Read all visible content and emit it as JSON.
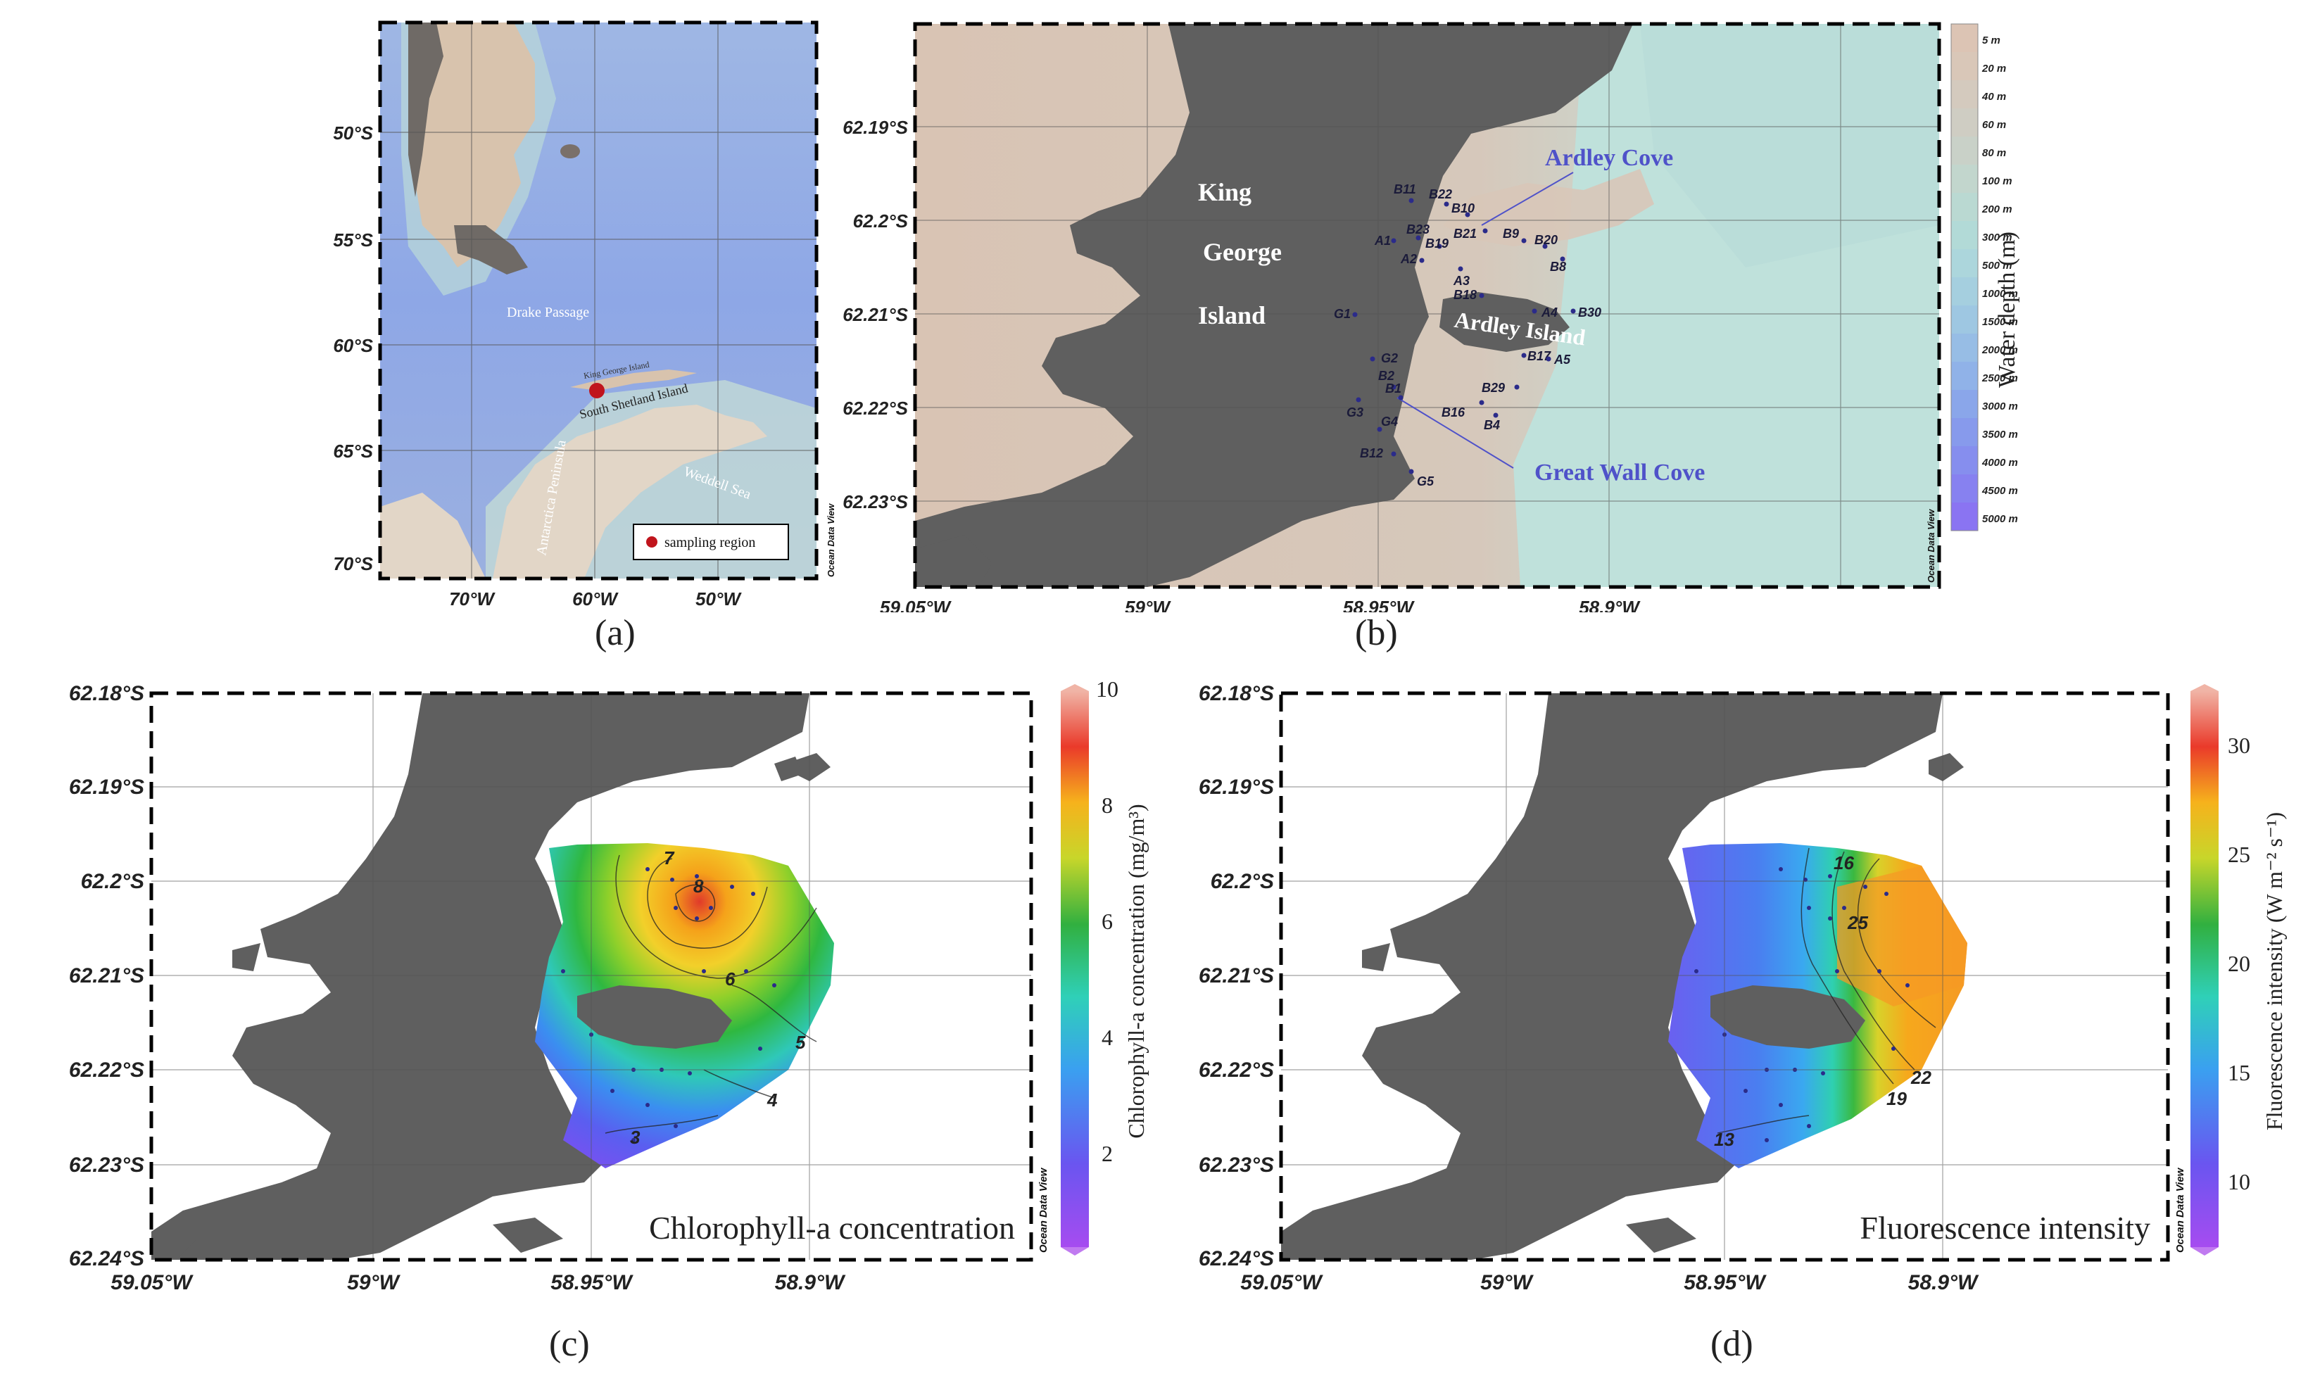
{
  "panels": {
    "a": {
      "caption": "(a)",
      "lat_labels": [
        "50°S",
        "55°S",
        "60°S",
        "65°S",
        "70°S"
      ],
      "lon_labels": [
        "70°W",
        "60°W",
        "50°W"
      ],
      "place_labels": [
        "Drake Passage",
        "King George Island",
        "South Shetland Island",
        "Weddell Sea",
        "Antarctica Peninsula"
      ],
      "legend_label": "sampling region",
      "watermark": "Ocean Data View"
    },
    "b": {
      "caption": "(b)",
      "lat_labels": [
        "62.19°S",
        "62.2°S",
        "62.21°S",
        "62.22°S",
        "62.23°S"
      ],
      "lon_labels": [
        "59.05°W",
        "59°W",
        "58.95°W",
        "58.9°W"
      ],
      "island_words": [
        "King",
        "George",
        "Island"
      ],
      "ardley_island": "Ardley Island",
      "ardley_cove": "Ardley Cove",
      "great_wall_cove": "Great Wall Cove",
      "stations": [
        "B11",
        "B22",
        "B10",
        "A1",
        "B23",
        "B19",
        "B21",
        "B9",
        "B20",
        "B8",
        "A2",
        "A3",
        "B18",
        "A4",
        "B30",
        "G1",
        "G2",
        "B17",
        "A5",
        "B2",
        "B1",
        "B29",
        "G3",
        "B16",
        "B4",
        "G4",
        "B12",
        "G5"
      ],
      "colorbar_title": "Water depth (m)",
      "depth_ticks": [
        "5 m",
        "20 m",
        "40 m",
        "60 m",
        "80 m",
        "100 m",
        "200 m",
        "300 m",
        "500 m",
        "1000 m",
        "1500 m",
        "2000 m",
        "2500 m",
        "3000 m",
        "3500 m",
        "4000 m",
        "4500 m",
        "5000 m"
      ],
      "depth_colors": [
        "#dcc4b4",
        "#d9c7b8",
        "#d4cabe",
        "#cfcdc3",
        "#c9d1c8",
        "#c2d6cd",
        "#bad9d2",
        "#b2dad7",
        "#acd6dc",
        "#a5cfdf",
        "#9ec7e2",
        "#97bde5",
        "#90b2e8",
        "#8aa6ea",
        "#879aec",
        "#868eee",
        "#8781f0",
        "#8a74f2"
      ],
      "watermark": "Ocean Data View"
    },
    "c": {
      "caption": "(c)",
      "lat_labels": [
        "62.18°S",
        "62.19°S",
        "62.2°S",
        "62.21°S",
        "62.22°S",
        "62.23°S",
        "62.24°S"
      ],
      "lon_labels": [
        "59.05°W",
        "59°W",
        "58.95°W",
        "58.9°W"
      ],
      "inset_title": "Chlorophyll-a concentration",
      "colorbar_title": "Chlorophyll-a concentration (mg/m³)",
      "colorbar_ticks": [
        "10",
        "8",
        "6",
        "4",
        "2"
      ],
      "contour_labels": [
        "8",
        "7",
        "6",
        "5",
        "4",
        "3"
      ],
      "watermark": "Ocean Data View"
    },
    "d": {
      "caption": "(d)",
      "lat_labels": [
        "62.18°S",
        "62.19°S",
        "62.2°S",
        "62.21°S",
        "62.22°S",
        "62.23°S",
        "62.24°S"
      ],
      "lon_labels": [
        "59.05°W",
        "59°W",
        "58.95°W",
        "58.9°W"
      ],
      "inset_title": "Fluorescence intensity",
      "colorbar_title": "Fluorescence intensity (W m⁻² s⁻¹)",
      "colorbar_ticks": [
        "30",
        "25",
        "20",
        "15",
        "10"
      ],
      "contour_labels": [
        "16",
        "25",
        "22",
        "19",
        "13"
      ],
      "watermark": "Ocean Data View"
    }
  },
  "colors": {
    "land": "#5f5f5f",
    "shallow": "#dbc6b6",
    "water": "#bfe1db",
    "station": "#2b2b8a",
    "cove_label": "#4f52c9",
    "sampling_dot": "#c0141c"
  }
}
